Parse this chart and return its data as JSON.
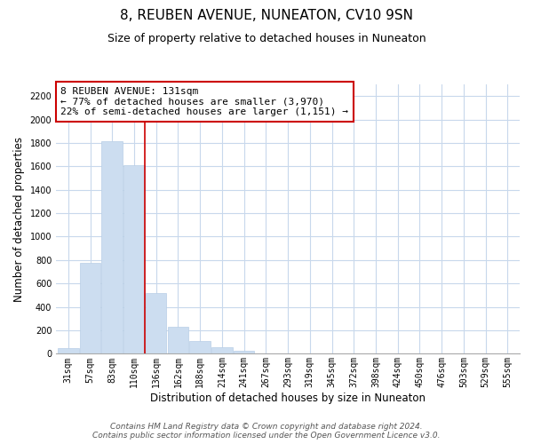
{
  "title": "8, REUBEN AVENUE, NUNEATON, CV10 9SN",
  "subtitle": "Size of property relative to detached houses in Nuneaton",
  "xlabel": "Distribution of detached houses by size in Nuneaton",
  "ylabel": "Number of detached properties",
  "categories": [
    "31sqm",
    "57sqm",
    "83sqm",
    "110sqm",
    "136sqm",
    "162sqm",
    "188sqm",
    "214sqm",
    "241sqm",
    "267sqm",
    "293sqm",
    "319sqm",
    "345sqm",
    "372sqm",
    "398sqm",
    "424sqm",
    "450sqm",
    "476sqm",
    "503sqm",
    "529sqm",
    "555sqm"
  ],
  "values": [
    50,
    775,
    1815,
    1610,
    520,
    230,
    110,
    55,
    25,
    0,
    0,
    0,
    0,
    0,
    0,
    0,
    0,
    0,
    0,
    0,
    0
  ],
  "bar_color": "#ccddf0",
  "bar_edge_color": "#b8cee6",
  "highlight_line_color": "#cc0000",
  "annotation_line1": "8 REUBEN AVENUE: 131sqm",
  "annotation_line2": "← 77% of detached houses are smaller (3,970)",
  "annotation_line3": "22% of semi-detached houses are larger (1,151) →",
  "annotation_box_color": "white",
  "annotation_box_edge_color": "#cc0000",
  "ylim": [
    0,
    2300
  ],
  "yticks": [
    0,
    200,
    400,
    600,
    800,
    1000,
    1200,
    1400,
    1600,
    1800,
    2000,
    2200
  ],
  "footer_line1": "Contains HM Land Registry data © Crown copyright and database right 2024.",
  "footer_line2": "Contains public sector information licensed under the Open Government Licence v3.0.",
  "background_color": "#ffffff",
  "grid_color": "#c8d8ec",
  "title_fontsize": 11,
  "subtitle_fontsize": 9,
  "axis_label_fontsize": 8.5,
  "tick_fontsize": 7,
  "annotation_fontsize": 8,
  "footer_fontsize": 6.5
}
